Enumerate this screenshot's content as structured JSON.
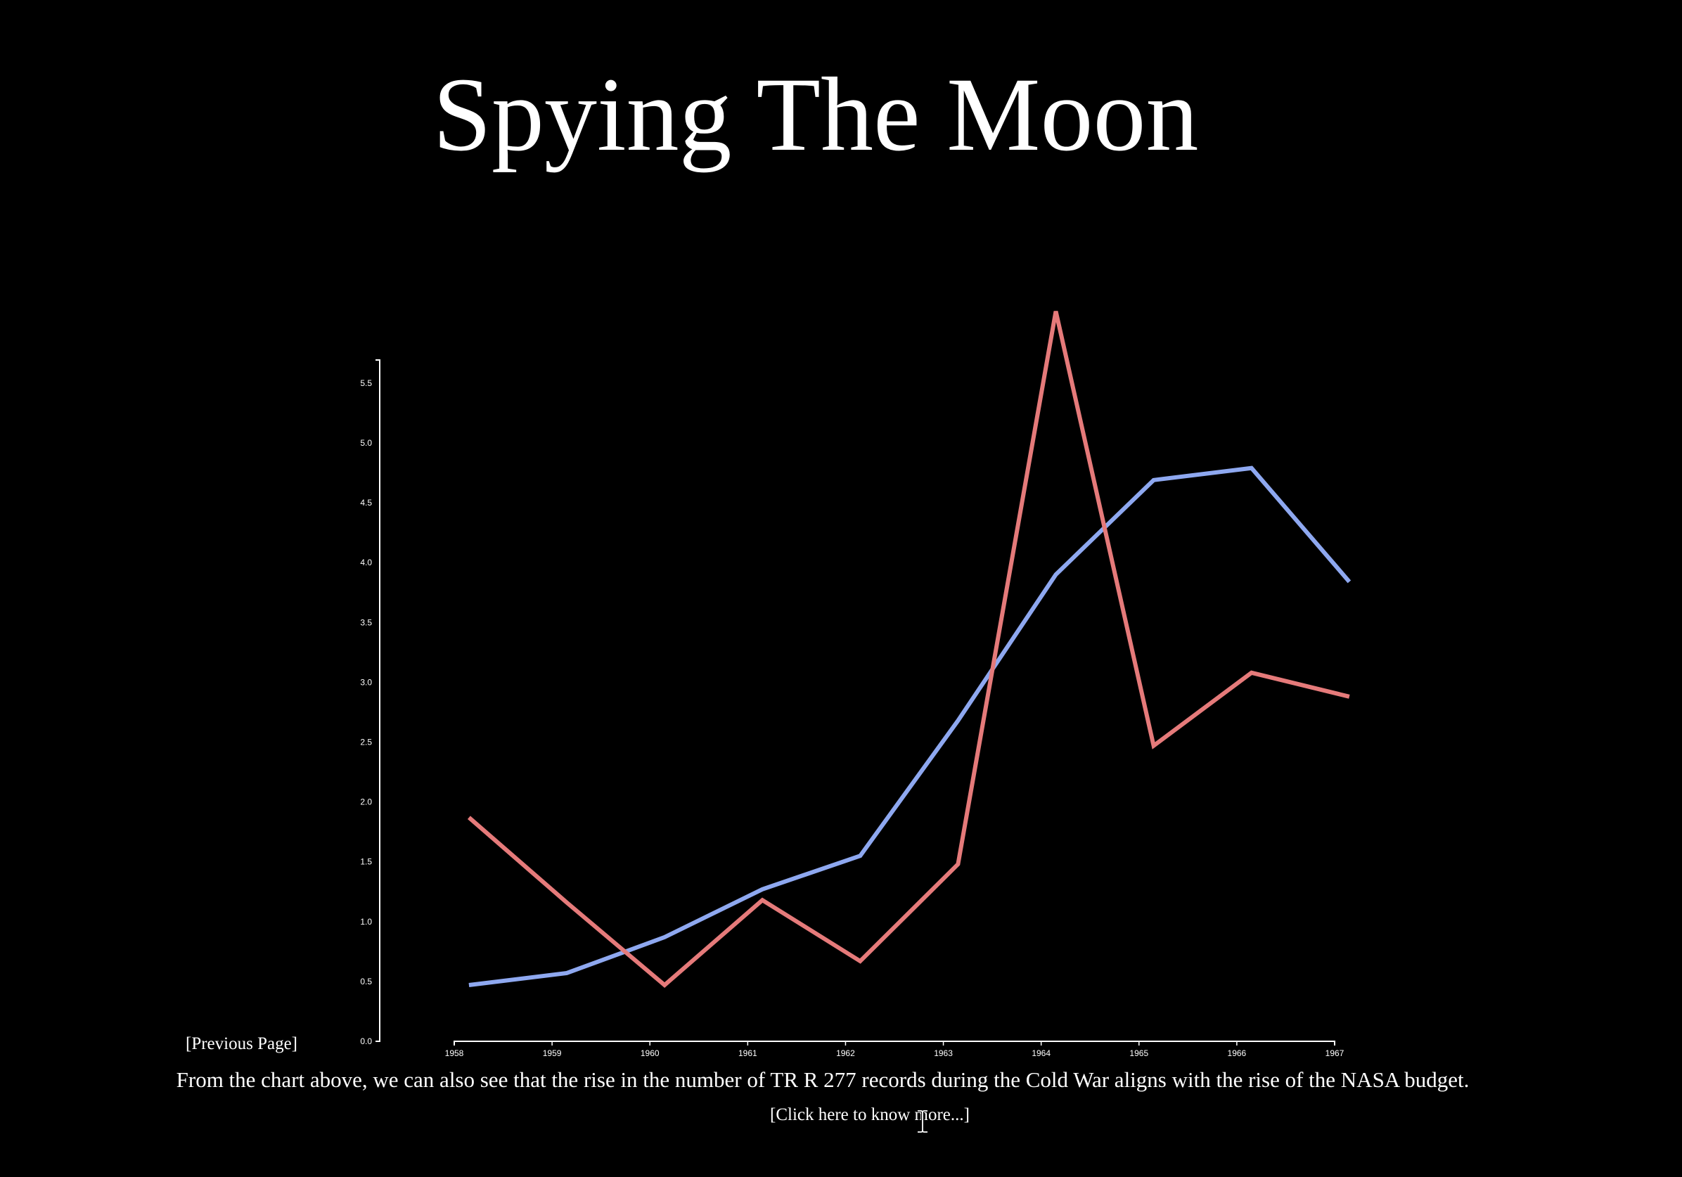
{
  "page": {
    "title": "Spying The Moon",
    "prev_link": "[Previous Page]",
    "description": "From the chart above, we can also see that the rise in the number of TR R 277 records during the Cold War aligns with the rise of the NASA budget.",
    "more_link": "[Click here to know more...]"
  },
  "chart_data": {
    "type": "line",
    "x": [
      1958,
      1959,
      1960,
      1961,
      1962,
      1963,
      1964,
      1965,
      1966,
      1967
    ],
    "x_tick_labels": [
      "1958",
      "1959",
      "1960",
      "1961",
      "1962",
      "1963",
      "1964",
      "1965",
      "1966",
      "1967"
    ],
    "y_tick_labels": [
      "0.0",
      "0.5",
      "1.0",
      "1.5",
      "2.0",
      "2.5",
      "3.0",
      "3.5",
      "4.0",
      "4.5",
      "5.0",
      "5.5"
    ],
    "ylim": [
      0,
      5.7
    ],
    "xlim": [
      1958,
      1967
    ],
    "grid": false,
    "series": [
      {
        "color": "#8ea8f0",
        "x": [
          1958.15,
          1959.15,
          1960.15,
          1961.15,
          1962.15,
          1963.15,
          1964.15,
          1965.15,
          1966.15,
          1967.15
        ],
        "values": [
          0.47,
          0.57,
          0.87,
          1.27,
          1.55,
          2.68,
          3.9,
          4.69,
          4.79,
          3.84
        ]
      },
      {
        "color": "#e57a7a",
        "x": [
          1958.15,
          1959.15,
          1960.15,
          1961.15,
          1962.15,
          1963.15,
          1964.15,
          1965.15,
          1966.15,
          1967.15
        ],
        "values": [
          1.87,
          1.16,
          0.47,
          1.18,
          0.67,
          1.48,
          6.1,
          2.47,
          3.08,
          2.88
        ]
      }
    ]
  }
}
